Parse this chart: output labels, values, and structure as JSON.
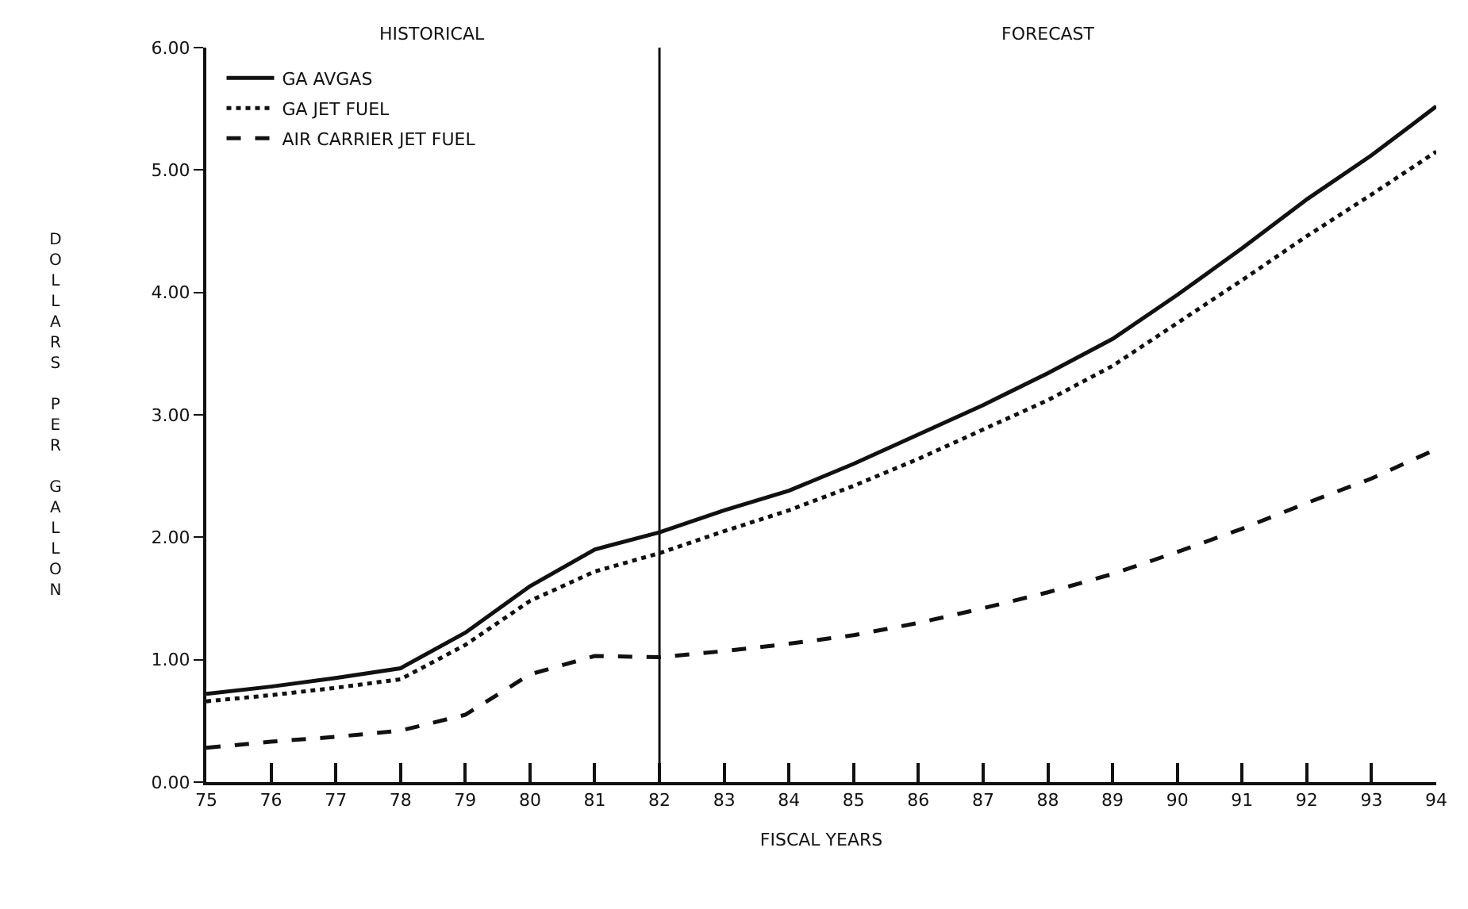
{
  "chart_data": {
    "type": "line",
    "xlabel": "FISCAL YEARS",
    "ylabel": "DOLLARS PER GALLON",
    "x": [
      75,
      76,
      77,
      78,
      79,
      80,
      81,
      82,
      83,
      84,
      85,
      86,
      87,
      88,
      89,
      90,
      91,
      92,
      93,
      94
    ],
    "series": [
      {
        "name": "GA AVGAS",
        "color": "#111111",
        "line_style": "solid",
        "values": [
          0.72,
          0.78,
          0.85,
          0.93,
          1.22,
          1.6,
          1.9,
          2.04,
          2.22,
          2.38,
          2.6,
          2.84,
          3.08,
          3.34,
          3.62,
          3.98,
          4.36,
          4.76,
          5.12,
          5.52
        ]
      },
      {
        "name": "GA JET FUEL",
        "color": "#111111",
        "line_style": "dotted",
        "values": [
          0.66,
          0.71,
          0.77,
          0.84,
          1.12,
          1.48,
          1.72,
          1.87,
          2.05,
          2.22,
          2.42,
          2.64,
          2.88,
          3.12,
          3.4,
          3.75,
          4.1,
          4.46,
          4.8,
          5.15
        ]
      },
      {
        "name": "AIR CARRIER JET FUEL",
        "color": "#111111",
        "line_style": "dashed",
        "values": [
          0.28,
          0.33,
          0.37,
          0.42,
          0.55,
          0.88,
          1.03,
          1.02,
          1.07,
          1.13,
          1.2,
          1.3,
          1.42,
          1.55,
          1.7,
          1.88,
          2.07,
          2.28,
          2.48,
          2.72
        ]
      }
    ],
    "xlim": [
      75,
      94
    ],
    "xticks": [
      75,
      76,
      77,
      78,
      79,
      80,
      81,
      82,
      83,
      84,
      85,
      86,
      87,
      88,
      89,
      90,
      91,
      92,
      93,
      94
    ],
    "ylim": [
      0,
      6
    ],
    "yticks": [
      {
        "value": 0,
        "label": "0.00"
      },
      {
        "value": 1,
        "label": "1.00"
      },
      {
        "value": 2,
        "label": "2.00"
      },
      {
        "value": 3,
        "label": "3.00"
      },
      {
        "value": 4,
        "label": "4.00"
      },
      {
        "value": 5,
        "label": "5.00"
      },
      {
        "value": 6,
        "label": "6.00"
      }
    ],
    "ref_lines": [
      {
        "axis": "x",
        "value": 82,
        "color": "#111111",
        "line_style": "solid"
      }
    ],
    "annotations": [
      "HISTORICAL",
      "FORECAST"
    ],
    "legend": "top left",
    "marker": "none"
  }
}
